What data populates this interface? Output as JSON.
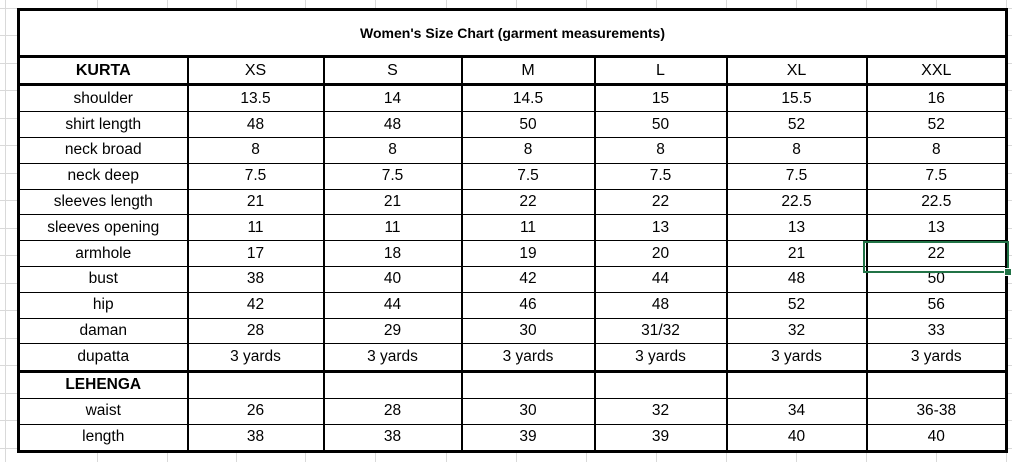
{
  "title": "Women's Size Chart (garment measurements)",
  "header_row": {
    "first_cell": "KURTA",
    "size_labels": [
      "XS",
      "S",
      "M",
      "L",
      "XL",
      "XXL"
    ]
  },
  "kurta_rows": [
    {
      "label": "shoulder",
      "values": [
        "13.5",
        "14",
        "14.5",
        "15",
        "15.5",
        "16"
      ]
    },
    {
      "label": "shirt length",
      "values": [
        "48",
        "48",
        "50",
        "50",
        "52",
        "52"
      ]
    },
    {
      "label": "neck broad",
      "values": [
        "8",
        "8",
        "8",
        "8",
        "8",
        "8"
      ]
    },
    {
      "label": "neck deep",
      "values": [
        "7.5",
        "7.5",
        "7.5",
        "7.5",
        "7.5",
        "7.5"
      ]
    },
    {
      "label": "sleeves length",
      "values": [
        "21",
        "21",
        "22",
        "22",
        "22.5",
        "22.5"
      ]
    },
    {
      "label": "sleeves opening",
      "values": [
        "11",
        "11",
        "11",
        "13",
        "13",
        "13"
      ]
    },
    {
      "label": "armhole",
      "values": [
        "17",
        "18",
        "19",
        "20",
        "21",
        "22"
      ]
    },
    {
      "label": "bust",
      "values": [
        "38",
        "40",
        "42",
        "44",
        "48",
        "50"
      ]
    },
    {
      "label": "hip",
      "values": [
        "42",
        "44",
        "46",
        "48",
        "52",
        "56"
      ]
    },
    {
      "label": "daman",
      "values": [
        "28",
        "29",
        "30",
        "31/32",
        "32",
        "33"
      ]
    },
    {
      "label": "dupatta",
      "values": [
        "3 yards",
        "3 yards",
        "3 yards",
        "3 yards",
        "3 yards",
        "3 yards"
      ]
    }
  ],
  "lehenga_header": "LEHENGA",
  "lehenga_rows": [
    {
      "label": "waist",
      "values": [
        "26",
        "28",
        "30",
        "32",
        "34",
        "36-38"
      ]
    },
    {
      "label": "length",
      "values": [
        "38",
        "38",
        "39",
        "39",
        "40",
        "40"
      ]
    }
  ],
  "selection": {
    "row": "armhole",
    "column": "XXL",
    "value": "22",
    "border_color": "#217346"
  }
}
